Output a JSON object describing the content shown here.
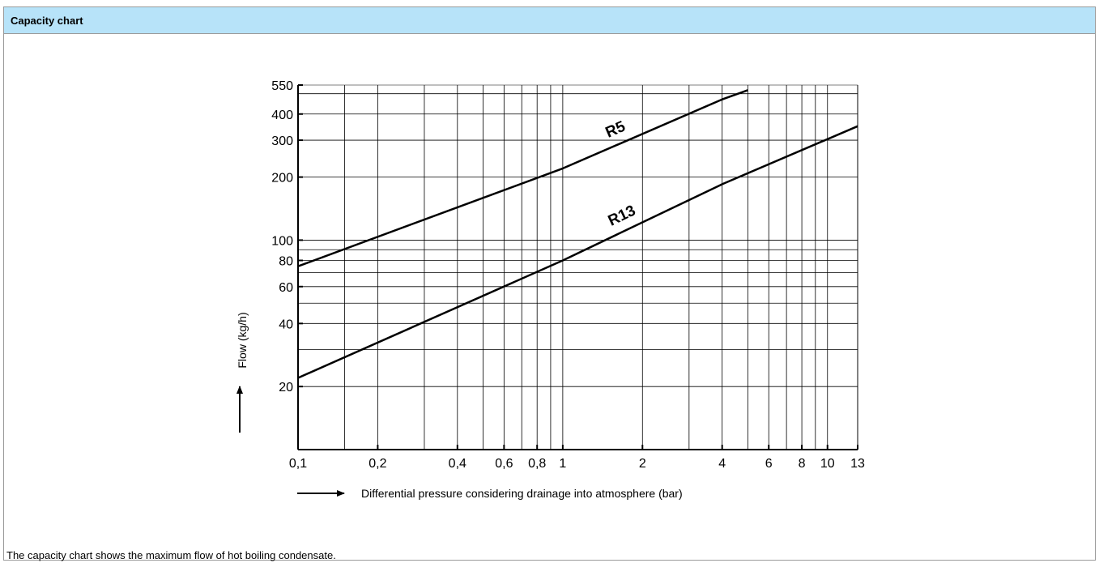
{
  "header": {
    "title": "Capacity chart"
  },
  "caption": "The capacity chart shows the maximum flow of hot boiling condensate.",
  "chart_data": {
    "type": "line",
    "xscale": "log",
    "yscale": "log",
    "xlim": [
      0.1,
      13
    ],
    "ylim": [
      10,
      550
    ],
    "xlabel": "Differential pressure considering drainage into atmosphere (bar)",
    "ylabel": "Flow (kg/h)",
    "x_ticks": [
      {
        "v": 0.1,
        "label": "0,1"
      },
      {
        "v": 0.2,
        "label": "0,2"
      },
      {
        "v": 0.4,
        "label": "0,4"
      },
      {
        "v": 0.6,
        "label": "0,6"
      },
      {
        "v": 0.8,
        "label": "0,8"
      },
      {
        "v": 1,
        "label": "1"
      },
      {
        "v": 2,
        "label": "2"
      },
      {
        "v": 4,
        "label": "4"
      },
      {
        "v": 6,
        "label": "6"
      },
      {
        "v": 8,
        "label": "8"
      },
      {
        "v": 10,
        "label": "10"
      },
      {
        "v": 13,
        "label": "13"
      }
    ],
    "y_ticks": [
      {
        "v": 20,
        "label": "20"
      },
      {
        "v": 40,
        "label": "40"
      },
      {
        "v": 60,
        "label": "60"
      },
      {
        "v": 80,
        "label": "80"
      },
      {
        "v": 100,
        "label": "100"
      },
      {
        "v": 200,
        "label": "200"
      },
      {
        "v": 300,
        "label": "300"
      },
      {
        "v": 400,
        "label": "400"
      },
      {
        "v": 550,
        "label": "550"
      }
    ],
    "x_grid": [
      0.15,
      0.2,
      0.3,
      0.4,
      0.5,
      0.6,
      0.7,
      0.8,
      0.9,
      1,
      2,
      3,
      4,
      5,
      6,
      7,
      8,
      9,
      10,
      13
    ],
    "y_grid": [
      20,
      30,
      40,
      50,
      60,
      70,
      80,
      90,
      100,
      200,
      300,
      400,
      500
    ],
    "series": [
      {
        "name": "R5",
        "x": [
          0.1,
          1,
          4,
          5
        ],
        "y": [
          75,
          220,
          470,
          520
        ]
      },
      {
        "name": "R13",
        "x": [
          0.1,
          1,
          4,
          13
        ],
        "y": [
          22,
          80,
          185,
          350
        ]
      }
    ]
  }
}
